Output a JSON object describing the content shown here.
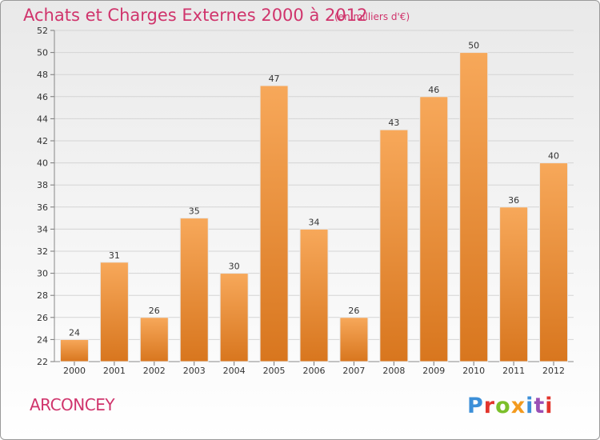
{
  "header": {
    "title": "Achats et Charges Externes 2000 à 2012",
    "subtitle": "(en milliers d'€)"
  },
  "footer": {
    "place": "ARCONCEY",
    "logo_text": "Proxiti"
  },
  "colors": {
    "title": "#d0346c",
    "bar_light": "#f7a85a",
    "bar_dark": "#d8761e",
    "logo_letters": [
      "#3c8fd8",
      "#e2342c",
      "#7bbf2a",
      "#f39a1e",
      "#3c8fd8",
      "#9a4fb5",
      "#e2342c"
    ]
  },
  "chart_data": {
    "type": "bar",
    "title": "Achats et Charges Externes 2000 à 2012",
    "subtitle": "(en milliers d'€)",
    "categories": [
      "2000",
      "2001",
      "2002",
      "2003",
      "2004",
      "2005",
      "2006",
      "2007",
      "2008",
      "2009",
      "2010",
      "2011",
      "2012"
    ],
    "values": [
      24,
      31,
      26,
      35,
      30,
      47,
      34,
      26,
      43,
      46,
      50,
      36,
      40
    ],
    "ylim": [
      22,
      52
    ],
    "yticks": [
      22,
      24,
      26,
      28,
      30,
      32,
      34,
      36,
      38,
      40,
      42,
      44,
      46,
      48,
      50,
      52
    ],
    "grid": true,
    "data_labels": true
  }
}
